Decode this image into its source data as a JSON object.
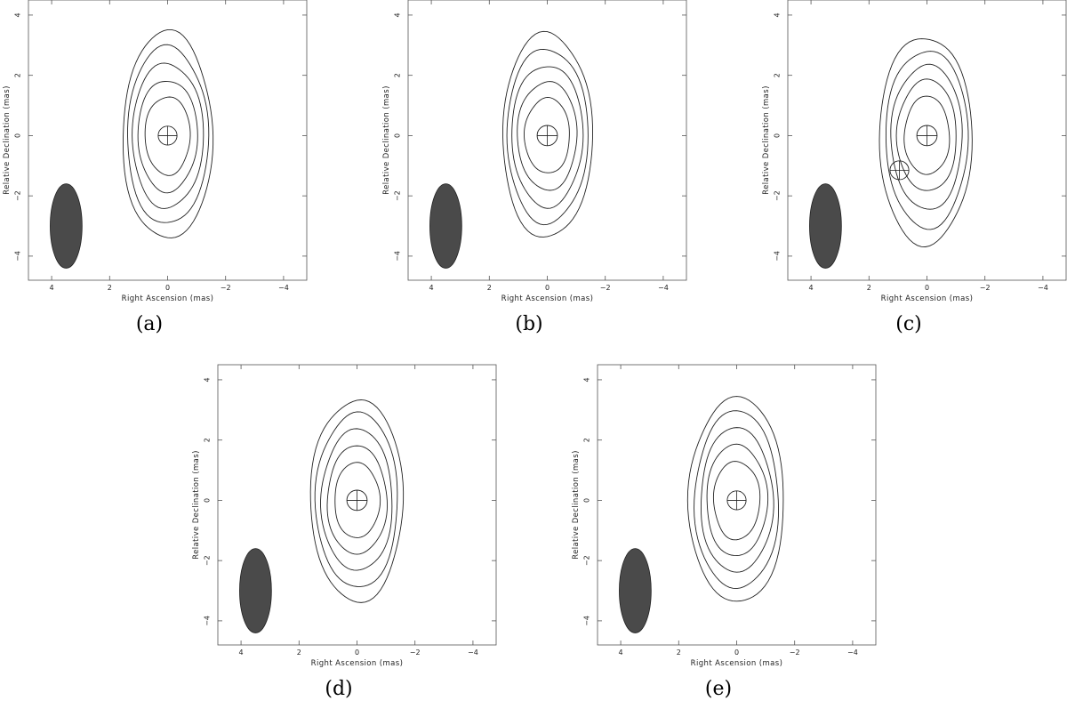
{
  "figure": {
    "captions": [
      "(a)",
      "(b)",
      "(c)",
      "(d)",
      "(e)"
    ]
  },
  "chart_data": [
    {
      "type": "contour",
      "panel_label": "(a)",
      "xlabel": "Right Ascension  (mas)",
      "ylabel": "Relative Declination  (mas)",
      "xlim": [
        4.8,
        -4.8
      ],
      "ylim": [
        -4.8,
        4.5
      ],
      "x_ticks": [
        4,
        2,
        0,
        -2,
        -4
      ],
      "y_ticks": [
        4,
        2,
        0,
        -2,
        -4
      ],
      "x_tick_labels": [
        "4",
        "2",
        "0",
        "−2",
        "−4"
      ],
      "y_tick_labels": [
        "4",
        "2",
        "0",
        "−2",
        "−4"
      ],
      "contours": [
        {
          "a": 1.55,
          "b": 3.45,
          "cx": 0.0,
          "cy": 0.0
        },
        {
          "a": 1.4,
          "b": 2.95,
          "cx": 0.0,
          "cy": 0.0
        },
        {
          "a": 1.23,
          "b": 2.4,
          "cx": 0.0,
          "cy": 0.0
        },
        {
          "a": 1.03,
          "b": 1.85,
          "cx": 0.0,
          "cy": 0.0
        },
        {
          "a": 0.78,
          "b": 1.3,
          "cx": 0.0,
          "cy": 0.0
        }
      ],
      "components": [
        {
          "x": 0.0,
          "y": 0.0,
          "diameter": 0.65
        }
      ],
      "beam": {
        "x": 3.5,
        "y": -3.0,
        "major": 2.8,
        "minor": 1.1,
        "pa": 0
      }
    },
    {
      "type": "contour",
      "panel_label": "(b)",
      "xlabel": "Right Ascension  (mas)",
      "ylabel": "Relative Declination  (mas)",
      "xlim": [
        4.8,
        -4.8
      ],
      "ylim": [
        -4.8,
        4.5
      ],
      "x_ticks": [
        4,
        2,
        0,
        -2,
        -4
      ],
      "y_ticks": [
        4,
        2,
        0,
        -2,
        -4
      ],
      "x_tick_labels": [
        "4",
        "2",
        "0",
        "−2",
        "−4"
      ],
      "y_tick_labels": [
        "4",
        "2",
        "0",
        "−2",
        "−4"
      ],
      "contours": [
        {
          "a": 1.55,
          "b": 3.4,
          "cx": 0.0,
          "cy": 0.0
        },
        {
          "a": 1.4,
          "b": 2.9,
          "cx": 0.0,
          "cy": 0.0
        },
        {
          "a": 1.23,
          "b": 2.35,
          "cx": 0.0,
          "cy": 0.0
        },
        {
          "a": 1.03,
          "b": 1.8,
          "cx": 0.0,
          "cy": 0.0
        },
        {
          "a": 0.78,
          "b": 1.25,
          "cx": 0.0,
          "cy": 0.0
        }
      ],
      "components": [
        {
          "x": 0.0,
          "y": 0.0,
          "diameter": 0.7
        }
      ],
      "beam": {
        "x": 3.5,
        "y": -3.0,
        "major": 2.8,
        "minor": 1.1,
        "pa": 0
      }
    },
    {
      "type": "contour",
      "panel_label": "(c)",
      "xlabel": "Right Ascension  (mas)",
      "ylabel": "Relative Declination  (mas)",
      "xlim": [
        4.8,
        -4.8
      ],
      "ylim": [
        -4.8,
        4.5
      ],
      "x_ticks": [
        4,
        2,
        0,
        -2,
        -4
      ],
      "y_ticks": [
        4,
        2,
        0,
        -2,
        -4
      ],
      "x_tick_labels": [
        "4",
        "2",
        "0",
        "−2",
        "−4"
      ],
      "y_tick_labels": [
        "4",
        "2",
        "0",
        "−2",
        "−4"
      ],
      "contours": [
        {
          "a": 1.6,
          "b": 3.45,
          "cx": 0.05,
          "cy": -0.15
        },
        {
          "a": 1.42,
          "b": 2.95,
          "cx": 0.0,
          "cy": -0.1
        },
        {
          "a": 1.23,
          "b": 2.4,
          "cx": 0.0,
          "cy": -0.05
        },
        {
          "a": 1.03,
          "b": 1.85,
          "cx": 0.0,
          "cy": 0.0
        },
        {
          "a": 0.78,
          "b": 1.3,
          "cx": 0.0,
          "cy": 0.0
        }
      ],
      "components": [
        {
          "x": 0.0,
          "y": 0.0,
          "diameter": 0.7
        },
        {
          "x": 0.95,
          "y": -1.15,
          "diameter": 0.65
        }
      ],
      "beam": {
        "x": 3.5,
        "y": -3.0,
        "major": 2.8,
        "minor": 1.1,
        "pa": 0
      }
    },
    {
      "type": "contour",
      "panel_label": "(d)",
      "xlabel": "Right Ascension  (mas)",
      "ylabel": "Relative Declination  (mas)",
      "xlim": [
        4.8,
        -4.8
      ],
      "ylim": [
        -4.8,
        4.5
      ],
      "x_ticks": [
        4,
        2,
        0,
        -2,
        -4
      ],
      "y_ticks": [
        4,
        2,
        0,
        -2,
        -4
      ],
      "x_tick_labels": [
        "4",
        "2",
        "0",
        "−2",
        "−4"
      ],
      "y_tick_labels": [
        "4",
        "2",
        "0",
        "−2",
        "−4"
      ],
      "contours": [
        {
          "a": 1.6,
          "b": 3.35,
          "cx": 0.0,
          "cy": 0.0
        },
        {
          "a": 1.42,
          "b": 2.9,
          "cx": 0.0,
          "cy": 0.0
        },
        {
          "a": 1.23,
          "b": 2.35,
          "cx": 0.0,
          "cy": 0.0
        },
        {
          "a": 1.03,
          "b": 1.8,
          "cx": 0.0,
          "cy": 0.0
        },
        {
          "a": 0.78,
          "b": 1.25,
          "cx": 0.0,
          "cy": 0.0
        }
      ],
      "components": [
        {
          "x": 0.0,
          "y": 0.0,
          "diameter": 0.7
        }
      ],
      "beam": {
        "x": 3.5,
        "y": -3.0,
        "major": 2.8,
        "minor": 1.1,
        "pa": 0
      }
    },
    {
      "type": "contour",
      "panel_label": "(e)",
      "xlabel": "Right Ascension  (mas)",
      "ylabel": "Relative Declination  (mas)",
      "xlim": [
        4.8,
        -4.8
      ],
      "ylim": [
        -4.8,
        4.5
      ],
      "x_ticks": [
        4,
        2,
        0,
        -2,
        -4
      ],
      "y_ticks": [
        4,
        2,
        0,
        -2,
        -4
      ],
      "x_tick_labels": [
        "4",
        "2",
        "0",
        "−2",
        "−4"
      ],
      "y_tick_labels": [
        "4",
        "2",
        "0",
        "−2",
        "−4"
      ],
      "contours": [
        {
          "a": 1.65,
          "b": 3.4,
          "cx": 0.0,
          "cy": 0.0
        },
        {
          "a": 1.45,
          "b": 2.95,
          "cx": 0.0,
          "cy": 0.0
        },
        {
          "a": 1.25,
          "b": 2.4,
          "cx": 0.0,
          "cy": 0.0
        },
        {
          "a": 1.05,
          "b": 1.85,
          "cx": 0.0,
          "cy": 0.0
        },
        {
          "a": 0.8,
          "b": 1.3,
          "cx": 0.0,
          "cy": 0.0
        }
      ],
      "components": [
        {
          "x": 0.0,
          "y": 0.0,
          "diameter": 0.65
        }
      ],
      "beam": {
        "x": 3.5,
        "y": -3.0,
        "major": 2.8,
        "minor": 1.1,
        "pa": 0
      }
    }
  ]
}
